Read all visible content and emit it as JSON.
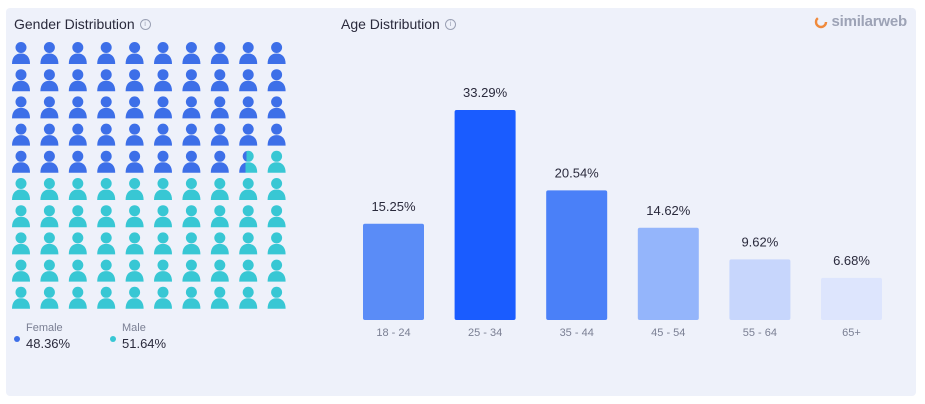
{
  "gender": {
    "title": "Gender Distribution",
    "info_icon": "i",
    "legend": [
      {
        "label": "Female",
        "value": "48.36%",
        "color": "#3d6fe8"
      },
      {
        "label": "Male",
        "value": "51.64%",
        "color": "#38c7d4"
      }
    ]
  },
  "age": {
    "title": "Age Distribution",
    "info_icon": "i"
  },
  "brand": {
    "name": "similarweb",
    "icon": "similarweb-logo-icon"
  },
  "chart_data": [
    {
      "type": "pictogram",
      "title": "Gender Distribution",
      "grid": {
        "rows": 10,
        "cols": 10
      },
      "series": [
        {
          "name": "Female",
          "value": 48.36,
          "color": "#3d6fe8"
        },
        {
          "name": "Male",
          "value": 51.64,
          "color": "#38c7d4"
        }
      ]
    },
    {
      "type": "bar",
      "title": "Age Distribution",
      "categories": [
        "18 - 24",
        "25 - 34",
        "35 - 44",
        "45 - 54",
        "55 - 64",
        "65+"
      ],
      "values": [
        15.25,
        33.29,
        20.54,
        14.62,
        9.62,
        6.68
      ],
      "labels": [
        "15.25%",
        "33.29%",
        "20.54%",
        "14.62%",
        "9.62%",
        "6.68%"
      ],
      "colors": [
        "#5a8cf7",
        "#1a5cff",
        "#4a80f8",
        "#94b5fb",
        "#c7d6fc",
        "#dde5fd"
      ],
      "ylim": [
        0,
        33.29
      ],
      "grid": false
    }
  ]
}
